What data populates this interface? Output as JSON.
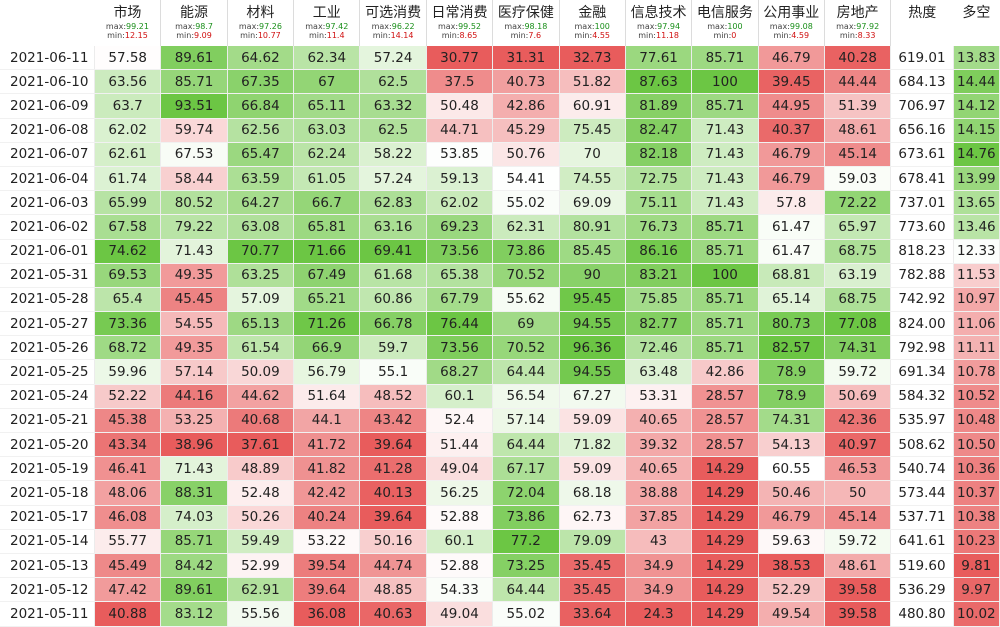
{
  "chart_data": {
    "type": "table",
    "date_header": "",
    "columns": [
      {
        "name": "市场",
        "max": "99.21",
        "min": "12.15"
      },
      {
        "name": "能源",
        "max": "98.7",
        "min": "9.09"
      },
      {
        "name": "材料",
        "max": "97.26",
        "min": "10.77"
      },
      {
        "name": "工业",
        "max": "97.42",
        "min": "11.4"
      },
      {
        "name": "可选消费",
        "max": "96.22",
        "min": "14.14"
      },
      {
        "name": "日常消费",
        "max": "99.52",
        "min": "8.65"
      },
      {
        "name": "医疗保健",
        "max": "98.18",
        "min": "7.6"
      },
      {
        "name": "金融",
        "max": "100",
        "min": "4.55"
      },
      {
        "name": "信息技术",
        "max": "97.94",
        "min": "11.18"
      },
      {
        "name": "电信服务",
        "max": "100",
        "min": "0"
      },
      {
        "name": "公用事业",
        "max": "99.08",
        "min": "4.59"
      },
      {
        "name": "房地产",
        "max": "97.92",
        "min": "8.33"
      }
    ],
    "heat_header": "热度",
    "ls_header": "多空",
    "max_label": "max:",
    "min_label": "min:",
    "colors": {
      "high": "#6cc644",
      "low": "#e85c5c",
      "mid": "#ffffff"
    },
    "rows": [
      {
        "date": "2021-06-11",
        "values": [
          "57.58",
          "89.61",
          "64.62",
          "62.34",
          "57.24",
          "30.77",
          "31.31",
          "32.73",
          "77.61",
          "85.71",
          "46.79",
          "40.28"
        ],
        "heat": "619.01",
        "ls": "13.83"
      },
      {
        "date": "2021-06-10",
        "values": [
          "63.56",
          "85.71",
          "67.35",
          "67",
          "62.5",
          "37.5",
          "40.73",
          "51.82",
          "87.63",
          "100",
          "39.45",
          "44.44"
        ],
        "heat": "684.13",
        "ls": "14.44"
      },
      {
        "date": "2021-06-09",
        "values": [
          "63.7",
          "93.51",
          "66.84",
          "65.11",
          "63.32",
          "50.48",
          "42.86",
          "60.91",
          "81.89",
          "85.71",
          "44.95",
          "51.39"
        ],
        "heat": "706.97",
        "ls": "14.12"
      },
      {
        "date": "2021-06-08",
        "values": [
          "62.02",
          "59.74",
          "62.56",
          "63.03",
          "62.5",
          "44.71",
          "45.29",
          "75.45",
          "82.47",
          "71.43",
          "40.37",
          "48.61"
        ],
        "heat": "656.16",
        "ls": "14.15"
      },
      {
        "date": "2021-06-07",
        "values": [
          "62.61",
          "67.53",
          "65.47",
          "62.24",
          "58.22",
          "53.85",
          "50.76",
          "70",
          "82.18",
          "71.43",
          "46.79",
          "45.14"
        ],
        "heat": "673.61",
        "ls": "14.76"
      },
      {
        "date": "2021-06-04",
        "values": [
          "61.74",
          "58.44",
          "63.59",
          "61.05",
          "57.24",
          "59.13",
          "54.41",
          "74.55",
          "72.75",
          "71.43",
          "46.79",
          "59.03"
        ],
        "heat": "678.41",
        "ls": "13.99"
      },
      {
        "date": "2021-06-03",
        "values": [
          "65.99",
          "80.52",
          "64.27",
          "66.7",
          "62.83",
          "62.02",
          "55.02",
          "69.09",
          "75.11",
          "71.43",
          "57.8",
          "72.22"
        ],
        "heat": "737.01",
        "ls": "13.65"
      },
      {
        "date": "2021-06-02",
        "values": [
          "67.58",
          "79.22",
          "63.08",
          "65.81",
          "63.16",
          "69.23",
          "62.31",
          "80.91",
          "76.73",
          "85.71",
          "61.47",
          "65.97"
        ],
        "heat": "773.60",
        "ls": "13.46"
      },
      {
        "date": "2021-06-01",
        "values": [
          "74.62",
          "71.43",
          "70.77",
          "71.66",
          "69.41",
          "73.56",
          "73.86",
          "85.45",
          "86.16",
          "85.71",
          "61.47",
          "68.75"
        ],
        "heat": "818.23",
        "ls": "12.33"
      },
      {
        "date": "2021-05-31",
        "values": [
          "69.53",
          "49.35",
          "63.25",
          "67.49",
          "61.68",
          "65.38",
          "70.52",
          "90",
          "83.21",
          "100",
          "68.81",
          "63.19"
        ],
        "heat": "782.88",
        "ls": "11.53"
      },
      {
        "date": "2021-05-28",
        "values": [
          "65.4",
          "45.45",
          "57.09",
          "65.21",
          "60.86",
          "67.79",
          "55.62",
          "95.45",
          "75.85",
          "85.71",
          "65.14",
          "68.75"
        ],
        "heat": "742.92",
        "ls": "10.97"
      },
      {
        "date": "2021-05-27",
        "values": [
          "73.36",
          "54.55",
          "65.13",
          "71.26",
          "66.78",
          "76.44",
          "69",
          "94.55",
          "82.77",
          "85.71",
          "80.73",
          "77.08"
        ],
        "heat": "824.00",
        "ls": "11.06"
      },
      {
        "date": "2021-05-26",
        "values": [
          "68.72",
          "49.35",
          "61.54",
          "66.9",
          "59.7",
          "73.56",
          "70.52",
          "96.36",
          "72.46",
          "85.71",
          "82.57",
          "74.31"
        ],
        "heat": "792.98",
        "ls": "11.11"
      },
      {
        "date": "2021-05-25",
        "values": [
          "59.96",
          "57.14",
          "50.09",
          "56.79",
          "55.1",
          "68.27",
          "64.44",
          "94.55",
          "63.48",
          "42.86",
          "78.9",
          "59.72"
        ],
        "heat": "691.34",
        "ls": "10.78"
      },
      {
        "date": "2021-05-24",
        "values": [
          "52.22",
          "44.16",
          "44.62",
          "51.64",
          "48.52",
          "60.1",
          "56.54",
          "67.27",
          "53.31",
          "28.57",
          "78.9",
          "50.69"
        ],
        "heat": "584.32",
        "ls": "10.52"
      },
      {
        "date": "2021-05-21",
        "values": [
          "45.38",
          "53.25",
          "40.68",
          "44.1",
          "43.42",
          "52.4",
          "57.14",
          "59.09",
          "40.65",
          "28.57",
          "74.31",
          "42.36"
        ],
        "heat": "535.97",
        "ls": "10.48"
      },
      {
        "date": "2021-05-20",
        "values": [
          "43.34",
          "38.96",
          "37.61",
          "41.72",
          "39.64",
          "51.44",
          "64.44",
          "71.82",
          "39.32",
          "28.57",
          "54.13",
          "40.97"
        ],
        "heat": "508.62",
        "ls": "10.50"
      },
      {
        "date": "2021-05-19",
        "values": [
          "46.41",
          "71.43",
          "48.89",
          "41.82",
          "41.28",
          "49.04",
          "67.17",
          "59.09",
          "40.65",
          "14.29",
          "60.55",
          "46.53"
        ],
        "heat": "540.74",
        "ls": "10.36"
      },
      {
        "date": "2021-05-18",
        "values": [
          "48.06",
          "88.31",
          "52.48",
          "42.42",
          "40.13",
          "56.25",
          "72.04",
          "68.18",
          "38.88",
          "14.29",
          "50.46",
          "50"
        ],
        "heat": "573.44",
        "ls": "10.37"
      },
      {
        "date": "2021-05-17",
        "values": [
          "46.08",
          "74.03",
          "50.26",
          "40.24",
          "39.64",
          "52.88",
          "73.86",
          "62.73",
          "37.85",
          "14.29",
          "46.79",
          "45.14"
        ],
        "heat": "537.71",
        "ls": "10.38"
      },
      {
        "date": "2021-05-14",
        "values": [
          "55.77",
          "85.71",
          "59.49",
          "53.22",
          "50.16",
          "60.1",
          "77.2",
          "79.09",
          "43",
          "14.29",
          "59.63",
          "59.72"
        ],
        "heat": "641.61",
        "ls": "10.23"
      },
      {
        "date": "2021-05-13",
        "values": [
          "45.49",
          "84.42",
          "52.99",
          "39.54",
          "44.74",
          "52.88",
          "73.25",
          "35.45",
          "34.9",
          "14.29",
          "38.53",
          "48.61"
        ],
        "heat": "519.60",
        "ls": "9.81"
      },
      {
        "date": "2021-05-12",
        "values": [
          "47.42",
          "89.61",
          "62.91",
          "39.64",
          "48.85",
          "54.33",
          "64.44",
          "35.45",
          "34.9",
          "14.29",
          "52.29",
          "39.58"
        ],
        "heat": "536.29",
        "ls": "9.97"
      },
      {
        "date": "2021-05-11",
        "values": [
          "40.88",
          "83.12",
          "55.56",
          "36.08",
          "40.63",
          "49.04",
          "55.02",
          "33.64",
          "24.3",
          "14.29",
          "49.54",
          "39.58"
        ],
        "heat": "480.80",
        "ls": "10.02"
      }
    ]
  }
}
